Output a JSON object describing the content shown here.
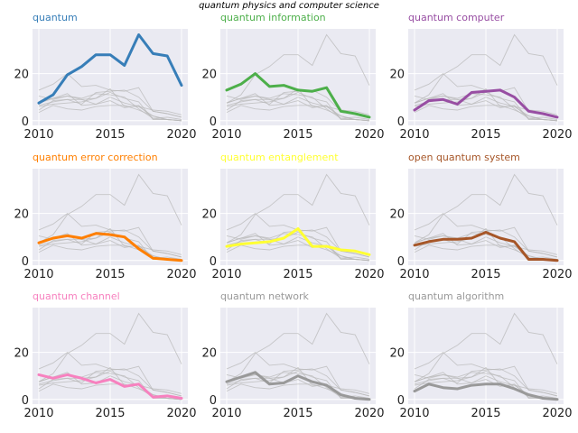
{
  "chart_data": {
    "type": "line",
    "title": "quantum physics and computer science",
    "x": [
      2010,
      2011,
      2012,
      2013,
      2014,
      2015,
      2016,
      2017,
      2018,
      2019,
      2020
    ],
    "xticks": [
      2010,
      2015,
      2020
    ],
    "yticks": [
      0,
      20
    ],
    "ylim": [
      -2,
      39
    ],
    "grid": true,
    "layout": "3x3 small multiples, each panel highlights one series over the others in grey",
    "series": [
      {
        "name": "quantum",
        "color": "#377eb8",
        "values": [
          7.5,
          11,
          19.5,
          23,
          28,
          28,
          23.5,
          36.5,
          28.5,
          27.5,
          15
        ]
      },
      {
        "name": "quantum information",
        "color": "#4daf4a",
        "values": [
          13,
          15.5,
          20,
          14.5,
          15,
          13,
          12.5,
          14,
          4,
          3,
          1.5
        ]
      },
      {
        "name": "quantum computer",
        "color": "#984ea3",
        "values": [
          4.5,
          8.5,
          9,
          7,
          12,
          12.5,
          13,
          10,
          4,
          3,
          1.5
        ]
      },
      {
        "name": "quantum error correction",
        "color": "#ff7f00",
        "values": [
          7.5,
          9.5,
          10.5,
          9.5,
          11.5,
          11,
          10,
          5,
          1,
          0.5,
          0
        ]
      },
      {
        "name": "quantum entanglement",
        "color": "#ffff33",
        "values": [
          6,
          7,
          7.5,
          8,
          9.5,
          13.5,
          6,
          6,
          4.5,
          4,
          2.5
        ]
      },
      {
        "name": "open quantum system",
        "color": "#a65628",
        "values": [
          6.5,
          8,
          9,
          9,
          9.5,
          12,
          9.5,
          8,
          0.5,
          0.5,
          0
        ]
      },
      {
        "name": "quantum channel",
        "color": "#f781bf",
        "values": [
          10.5,
          9,
          10.5,
          9,
          7,
          8.5,
          5.5,
          6.5,
          1,
          1.5,
          0.5
        ]
      },
      {
        "name": "quantum network",
        "color": "#999999",
        "values": [
          7.5,
          9.5,
          11.5,
          6.5,
          7,
          10,
          7.5,
          6,
          2,
          0.5,
          0
        ]
      },
      {
        "name": "quantum algorithm",
        "color": "#999999",
        "values": [
          3.5,
          6.5,
          5,
          4.5,
          6,
          6.5,
          6.5,
          4.5,
          2,
          0.5,
          0
        ]
      }
    ]
  }
}
